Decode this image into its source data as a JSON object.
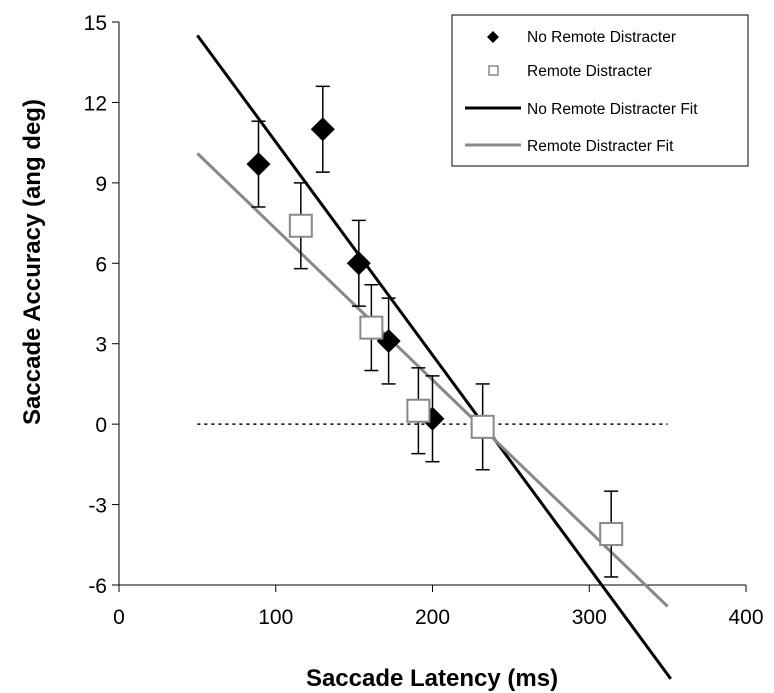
{
  "chart_data": {
    "type": "scatter",
    "xlabel": "Saccade Latency (ms)",
    "ylabel": "Saccade Accuracy (ang deg)",
    "xlim": [
      0,
      400
    ],
    "ylim": [
      -6,
      15
    ],
    "xticks": [
      0,
      100,
      200,
      300,
      400
    ],
    "yticks": [
      15,
      12,
      9,
      6,
      3,
      0,
      -3,
      -6
    ],
    "xtick_labels": [
      "0",
      "100",
      "200",
      "300",
      "400"
    ],
    "ytick_labels": [
      "15",
      "12",
      "9",
      "6",
      "3",
      "0",
      "-3",
      "-6"
    ],
    "grid": false,
    "legend_position": "top-right",
    "reference_line": {
      "y": 0,
      "x_range": [
        50,
        350
      ],
      "style": "dotted"
    },
    "series": [
      {
        "name": "No Remote Distracter",
        "marker": "diamond",
        "color": "#000000",
        "points": [
          {
            "x": 89,
            "y": 9.7,
            "err": 1.6
          },
          {
            "x": 130,
            "y": 11.0,
            "err": 1.6
          },
          {
            "x": 153,
            "y": 6.0,
            "err": 1.6
          },
          {
            "x": 172,
            "y": 3.1,
            "err": 1.6
          },
          {
            "x": 200,
            "y": 0.2,
            "err": 1.6
          }
        ]
      },
      {
        "name": "Remote Distracter",
        "marker": "square",
        "color": "#888888",
        "points": [
          {
            "x": 116,
            "y": 7.4,
            "err": 1.6
          },
          {
            "x": 161,
            "y": 3.6,
            "err": 1.6
          },
          {
            "x": 191,
            "y": 0.5,
            "err": 1.6
          },
          {
            "x": 232,
            "y": -0.1,
            "err": 1.6
          },
          {
            "x": 314,
            "y": -4.1,
            "err": 1.6
          }
        ]
      },
      {
        "name": "No Remote Distracter Fit",
        "type": "line",
        "color": "#000000",
        "x": [
          50,
          352
        ],
        "y": [
          14.5,
          -9.5
        ]
      },
      {
        "name": "Remote Distracter Fit",
        "type": "line",
        "color": "#888888",
        "x": [
          50,
          350
        ],
        "y": [
          10.1,
          -6.8
        ]
      }
    ]
  }
}
